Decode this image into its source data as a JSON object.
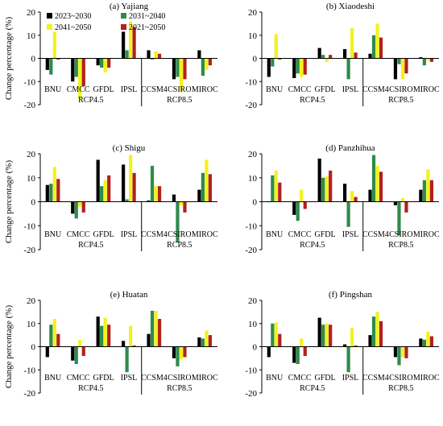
{
  "figure": {
    "ylabel": "Change percentage (%)",
    "legend": [
      {
        "label": "2023~2030",
        "color": "#000000"
      },
      {
        "label": "2031~2040",
        "color": "#2e8b4a"
      },
      {
        "label": "2041~2050",
        "color": "#f2f21c"
      },
      {
        "label": "2021~2050",
        "color": "#b0221d"
      }
    ],
    "groups": [
      {
        "label": "RCP4.5",
        "models": 4
      },
      {
        "label": "RCP8.5",
        "models": 3
      }
    ]
  },
  "chart_data": [
    {
      "type": "bar",
      "title": "(a) Yajiang",
      "ylabel": "Change percentage (%)",
      "categories": [
        "BNU",
        "CMCC",
        "GFDL",
        "IPSL",
        "CCSM4",
        "CSIRO",
        "MIROC"
      ],
      "ylim": [
        -20,
        20
      ],
      "yticks": [
        -20,
        -10,
        0,
        10,
        20
      ],
      "legend_position": "top-left",
      "series": [
        {
          "name": "2023~2030",
          "values": [
            -5,
            -10,
            -3,
            11.5,
            3.5,
            -9,
            3.5
          ]
        },
        {
          "name": "2031~2040",
          "values": [
            -7,
            -8,
            -4,
            3.5,
            -0.5,
            -8,
            -7.5
          ]
        },
        {
          "name": "2041~2050",
          "values": [
            11.5,
            -17.5,
            -6,
            16,
            3,
            -14,
            -5
          ]
        },
        {
          "name": "2021~2050",
          "values": [
            -0.5,
            -12,
            -4,
            13.5,
            2,
            -9,
            -3
          ]
        }
      ]
    },
    {
      "type": "bar",
      "title": "(b) Xiaodeshi",
      "ylabel": "",
      "categories": [
        "BNU",
        "CMCC",
        "GFDL",
        "IPSL",
        "CCSM4",
        "CSIRO",
        "MIROC"
      ],
      "ylim": [
        -20,
        20
      ],
      "yticks": [
        -20,
        -10,
        0,
        10,
        20
      ],
      "series": [
        {
          "name": "2023~2030",
          "values": [
            -8,
            -8.5,
            4.5,
            4,
            2,
            -9,
            0.5
          ]
        },
        {
          "name": "2031~2040",
          "values": [
            -3.5,
            -6.5,
            1.5,
            -9,
            10,
            -2.5,
            -3
          ]
        },
        {
          "name": "2041~2050",
          "values": [
            10.5,
            -8,
            -1.5,
            13,
            15,
            -9,
            -1
          ]
        },
        {
          "name": "2021~2050",
          "values": [
            -0.5,
            -7,
            1.5,
            2.5,
            9,
            -6.5,
            -1.5
          ]
        }
      ]
    },
    {
      "type": "bar",
      "title": "(c) Shigu",
      "ylabel": "Change percentage (%)",
      "categories": [
        "BNU",
        "CMCC",
        "GFDL",
        "IPSL",
        "CCSM4",
        "CSIRO",
        "MIROC"
      ],
      "ylim": [
        -20,
        20
      ],
      "yticks": [
        -20,
        -10,
        0,
        10,
        20
      ],
      "series": [
        {
          "name": "2023~2030",
          "values": [
            7,
            -5,
            17.5,
            15.5,
            0.5,
            3,
            5
          ]
        },
        {
          "name": "2031~2040",
          "values": [
            7.5,
            -7,
            6.5,
            1,
            15,
            -17,
            12
          ]
        },
        {
          "name": "2041~2050",
          "values": [
            14.5,
            -2,
            9,
            19.5,
            6.5,
            -1.5,
            17.5
          ]
        },
        {
          "name": "2021~2050",
          "values": [
            9.5,
            -4.5,
            11,
            12,
            6.5,
            -4.5,
            11.5
          ]
        }
      ]
    },
    {
      "type": "bar",
      "title": "(d) Panzhihua",
      "ylabel": "",
      "categories": [
        "BNU",
        "CMCC",
        "GFDL",
        "IPSL",
        "CCSM4",
        "CSIRO",
        "MIROC"
      ],
      "ylim": [
        -20,
        20
      ],
      "yticks": [
        -20,
        -10,
        0,
        10,
        20
      ],
      "series": [
        {
          "name": "2023~2030",
          "values": [
            0,
            -5.5,
            18,
            7.5,
            5,
            -1.5,
            5
          ]
        },
        {
          "name": "2031~2040",
          "values": [
            11,
            -8,
            10,
            -10.5,
            19.5,
            -14,
            9
          ]
        },
        {
          "name": "2041~2050",
          "values": [
            13,
            5,
            10.5,
            4.5,
            15,
            1.5,
            13.5
          ]
        },
        {
          "name": "2021~2050",
          "values": [
            8,
            -3,
            13,
            2,
            12.5,
            -4.5,
            9
          ]
        }
      ]
    },
    {
      "type": "bar",
      "title": "(e) Huatan",
      "ylabel": "Change percentage (%)",
      "categories": [
        "BNU",
        "CMCC",
        "GFDL",
        "IPSL",
        "CCSM4",
        "CSIRO",
        "MIROC"
      ],
      "ylim": [
        -20,
        20
      ],
      "yticks": [
        -20,
        -10,
        0,
        10,
        20
      ],
      "series": [
        {
          "name": "2023~2030",
          "values": [
            -4.5,
            -6,
            13,
            2.5,
            5.5,
            -5,
            4
          ]
        },
        {
          "name": "2031~2040",
          "values": [
            9.5,
            -7.5,
            9,
            -11,
            15.5,
            -8.5,
            3.5
          ]
        },
        {
          "name": "2041~2050",
          "values": [
            12,
            3,
            12.5,
            9,
            15.5,
            -5.5,
            7
          ]
        },
        {
          "name": "2021~2050",
          "values": [
            5.5,
            -4,
            9.5,
            0.5,
            12,
            -4.5,
            5
          ]
        }
      ]
    },
    {
      "type": "bar",
      "title": "(f) Pingshan",
      "ylabel": "",
      "categories": [
        "BNU",
        "CMCC",
        "GFDL",
        "IPSL",
        "CCSM4",
        "CSIRO",
        "MIROC"
      ],
      "ylim": [
        -20,
        20
      ],
      "yticks": [
        -20,
        -10,
        0,
        10,
        20
      ],
      "series": [
        {
          "name": "2023~2030",
          "values": [
            -4.5,
            -7,
            12.5,
            1,
            5,
            -4.5,
            3.5
          ]
        },
        {
          "name": "2031~2040",
          "values": [
            10,
            -7.5,
            9.5,
            -11,
            13,
            -8,
            3
          ]
        },
        {
          "name": "2041~2050",
          "values": [
            10.5,
            3.5,
            10,
            8,
            15,
            -4.5,
            6.5
          ]
        },
        {
          "name": "2021~2050",
          "values": [
            5.5,
            -4,
            9.5,
            0.5,
            11,
            -5,
            4.5
          ]
        }
      ]
    }
  ]
}
